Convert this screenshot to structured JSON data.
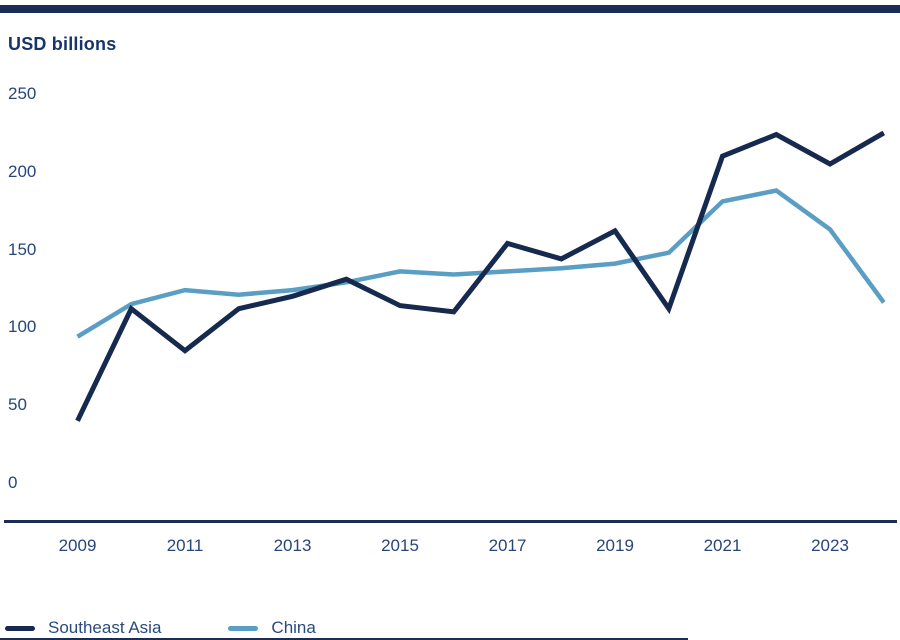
{
  "header": {
    "title": "USD billions"
  },
  "chart_data": {
    "type": "line",
    "title": "",
    "ylabel": "USD billions",
    "xlabel": "",
    "ylim": [
      0,
      250
    ],
    "yticks": [
      0,
      50,
      100,
      150,
      200,
      250
    ],
    "xticks": [
      2009,
      2011,
      2013,
      2015,
      2017,
      2019,
      2021,
      2023
    ],
    "grid": false,
    "legend_position": "bottom-left",
    "x": [
      2009,
      2010,
      2011,
      2012,
      2013,
      2014,
      2015,
      2016,
      2017,
      2018,
      2019,
      2020,
      2021,
      2022,
      2023,
      2024
    ],
    "series": [
      {
        "name": "Southeast Asia",
        "color": "#16294e",
        "stroke_width": 5,
        "values": [
          40,
          112,
          85,
          112,
          120,
          131,
          114,
          110,
          154,
          144,
          162,
          112,
          210,
          224,
          205,
          225
        ]
      },
      {
        "name": "China",
        "color": "#5b9ec4",
        "stroke_width": 4.5,
        "values": [
          94,
          115,
          124,
          121,
          124,
          129,
          136,
          134,
          136,
          138,
          141,
          148,
          181,
          188,
          163,
          116
        ]
      }
    ]
  },
  "colors": {
    "accent_navy": "#1b2c55",
    "text_navy": "#27467b",
    "title_navy": "#16356b"
  }
}
